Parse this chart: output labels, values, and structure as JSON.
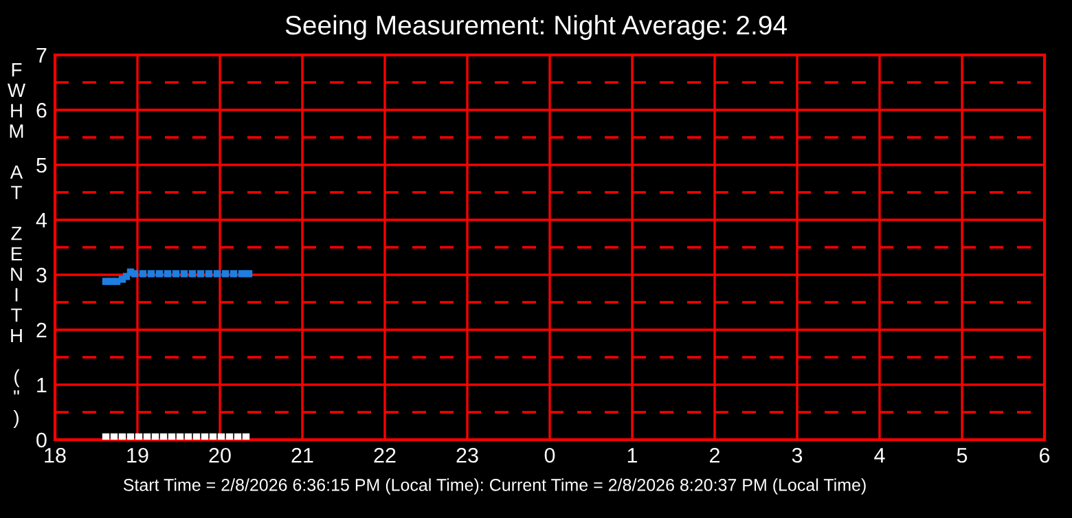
{
  "chart_data": {
    "type": "scatter",
    "title": "Seeing Measurement: Night Average: 2.94",
    "ylabel": "FWHM AT ZENITH (\")",
    "annotations": [
      "Start Time = 2/8/2026 6:36:15 PM (Local Time): Current Time = 2/8/2026 8:20:37 PM (Local Time)"
    ],
    "series": [
      {
        "color": "#1e7fe0",
        "x": [
          "2026-02-08T18:37",
          "2026-02-08T18:41",
          "2026-02-08T18:45",
          "2026-02-08T18:49",
          "2026-02-08T18:52",
          "2026-02-08T18:55",
          "2026-02-08T18:58",
          "2026-02-08T19:04",
          "2026-02-08T19:10",
          "2026-02-08T19:16",
          "2026-02-08T19:22",
          "2026-02-08T19:28",
          "2026-02-08T19:34",
          "2026-02-08T19:40",
          "2026-02-08T19:46",
          "2026-02-08T19:52",
          "2026-02-08T19:58",
          "2026-02-08T20:04",
          "2026-02-08T20:10",
          "2026-02-08T20:16",
          "2026-02-08T20:21"
        ],
        "values": [
          2.88,
          2.88,
          2.88,
          2.92,
          2.97,
          3.05,
          3.02,
          3.02,
          3.02,
          3.02,
          3.02,
          3.02,
          3.02,
          3.02,
          3.02,
          3.02,
          3.02,
          3.02,
          3.02,
          3.02,
          3.02
        ]
      },
      {
        "color": "#ffffff",
        "x": [
          "2026-02-08T18:37",
          "2026-02-08T18:43",
          "2026-02-08T18:49",
          "2026-02-08T18:55",
          "2026-02-08T19:01",
          "2026-02-08T19:07",
          "2026-02-08T19:13",
          "2026-02-08T19:19",
          "2026-02-08T19:25",
          "2026-02-08T19:31",
          "2026-02-08T19:37",
          "2026-02-08T19:43",
          "2026-02-08T19:49",
          "2026-02-08T19:55",
          "2026-02-08T20:01",
          "2026-02-08T20:07",
          "2026-02-08T20:13",
          "2026-02-08T20:19"
        ],
        "values": [
          0.05,
          0.05,
          0.05,
          0.05,
          0.05,
          0.05,
          0.05,
          0.05,
          0.05,
          0.05,
          0.05,
          0.05,
          0.05,
          0.05,
          0.05,
          0.05,
          0.05,
          0.05
        ]
      }
    ],
    "marker": "square",
    "grid": true,
    "xlim": [
      "2026-02-08T18:00",
      "2026-02-09T06:00"
    ],
    "xticks": [
      {
        "value": "2026-02-08T18:00",
        "label": "18"
      },
      {
        "value": "2026-02-08T19:00",
        "label": "19"
      },
      {
        "value": "2026-02-08T20:00",
        "label": "20"
      },
      {
        "value": "2026-02-08T21:00",
        "label": "21"
      },
      {
        "value": "2026-02-08T22:00",
        "label": "22"
      },
      {
        "value": "2026-02-08T23:00",
        "label": "23"
      },
      {
        "value": "2026-02-09T00:00",
        "label": "0"
      },
      {
        "value": "2026-02-09T01:00",
        "label": "1"
      },
      {
        "value": "2026-02-09T02:00",
        "label": "2"
      },
      {
        "value": "2026-02-09T03:00",
        "label": "3"
      },
      {
        "value": "2026-02-09T04:00",
        "label": "4"
      },
      {
        "value": "2026-02-09T05:00",
        "label": "5"
      },
      {
        "value": "2026-02-09T06:00",
        "label": "6"
      }
    ],
    "ylim": [
      0,
      7
    ],
    "yticks": [
      0,
      {
        "value": 0.5,
        "label": null
      },
      1,
      {
        "value": 1.5,
        "label": null
      },
      2,
      {
        "value": 2.5,
        "label": null
      },
      3,
      {
        "value": 3.5,
        "label": null
      },
      4,
      {
        "value": 4.5,
        "label": null
      },
      5,
      {
        "value": 5.5,
        "label": null
      },
      6,
      {
        "value": 6.5,
        "label": null
      },
      7
    ]
  }
}
